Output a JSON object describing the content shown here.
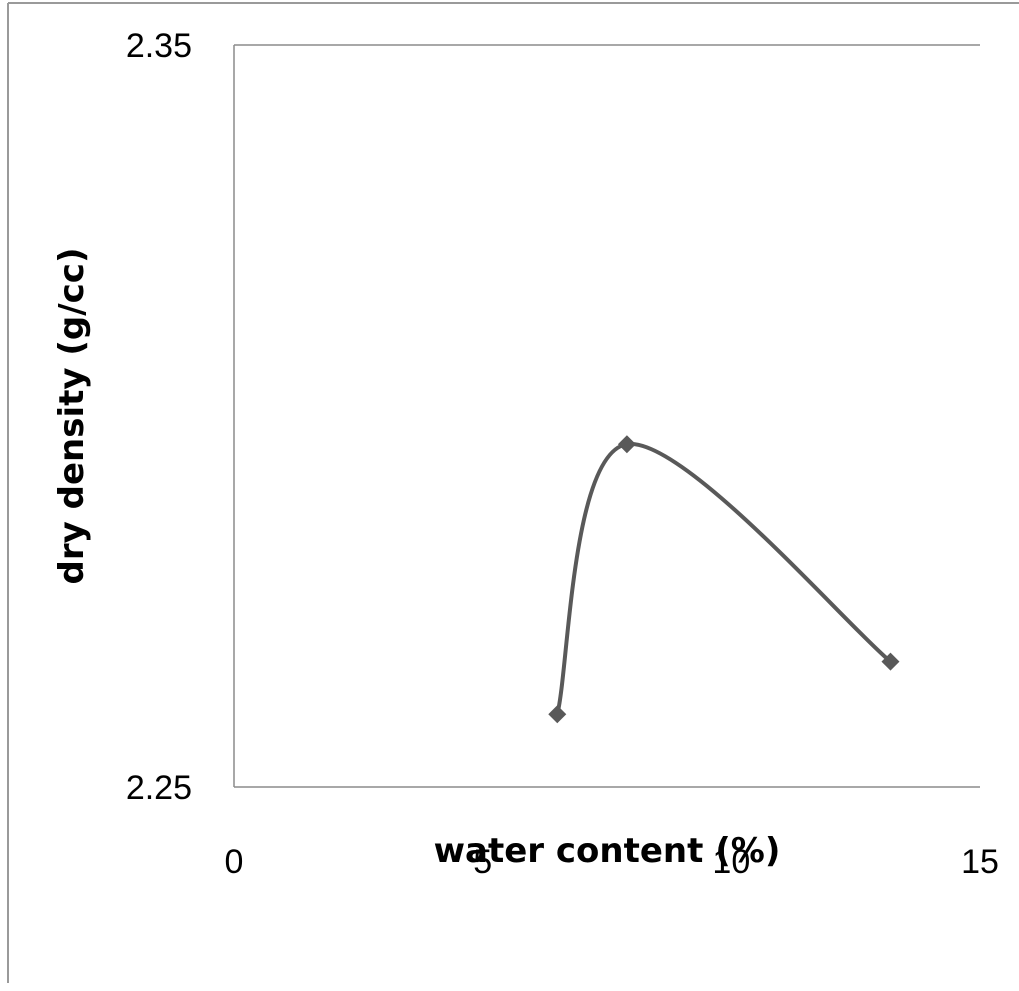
{
  "chart_data": {
    "type": "scatter",
    "title": "",
    "xlabel": "water content (%)",
    "ylabel": "dry  density (g/cc)",
    "xlim": [
      0,
      15
    ],
    "ylim": [
      2.25,
      2.35
    ],
    "x_ticks": [
      0,
      5,
      10,
      15
    ],
    "x_tick_labels": [
      "0",
      "5",
      "10",
      "15"
    ],
    "y_ticks": [
      2.25,
      2.35
    ],
    "y_tick_labels": [
      "2.25",
      "2.35"
    ],
    "grid": false,
    "legend": "none",
    "smoothed_line": true,
    "marker": "diamond",
    "series": [
      {
        "color": "#595959",
        "x": [
          6.5,
          7.9,
          13.2
        ],
        "y": [
          2.2598,
          2.2962,
          2.2669
        ]
      }
    ]
  }
}
